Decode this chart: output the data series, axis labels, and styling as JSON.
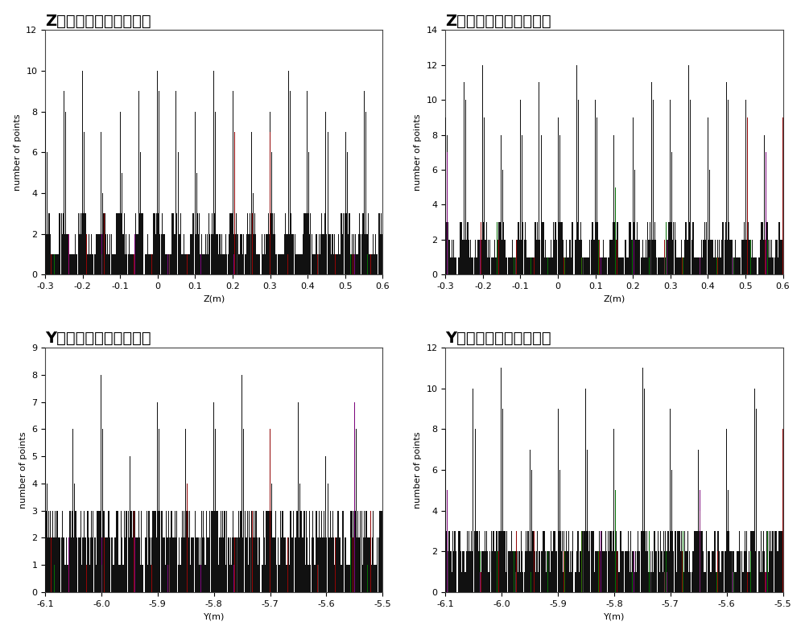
{
  "subplots": [
    {
      "title": "Z方向线密度变化周期１",
      "xlabel": "Z(m)",
      "ylabel": "number of points",
      "xlim": [
        -0.3,
        0.6
      ],
      "ylim": [
        0,
        12
      ],
      "yticks": [
        0,
        2,
        4,
        6,
        8,
        10,
        12
      ],
      "xticks": [
        -0.3,
        -0.2,
        -0.1,
        0.0,
        0.1,
        0.2,
        0.3,
        0.4,
        0.5,
        0.6
      ]
    },
    {
      "title": "Z方向线密度变化周期２",
      "xlabel": "Z(m)",
      "ylabel": "number of points",
      "xlim": [
        -0.3,
        0.6
      ],
      "ylim": [
        0,
        14
      ],
      "yticks": [
        0,
        2,
        4,
        6,
        8,
        10,
        12,
        14
      ],
      "xticks": [
        -0.3,
        -0.2,
        -0.1,
        0.0,
        0.1,
        0.2,
        0.3,
        0.4,
        0.5,
        0.6
      ]
    },
    {
      "title": "Y方向线密度变化周期１",
      "xlabel": "Y(m)",
      "ylabel": "number of points",
      "xlim": [
        -6.1,
        -5.5
      ],
      "ylim": [
        0,
        9
      ],
      "yticks": [
        0,
        1,
        2,
        3,
        4,
        5,
        6,
        7,
        8,
        9
      ],
      "xticks": [
        -6.1,
        -6.0,
        -5.9,
        -5.8,
        -5.7,
        -5.6,
        -5.5
      ]
    },
    {
      "title": "Y方向线密度变化周期２",
      "xlabel": "Y(m)",
      "ylabel": "number of points",
      "xlim": [
        -6.1,
        -5.5
      ],
      "ylim": [
        0,
        12
      ],
      "yticks": [
        0,
        2,
        4,
        6,
        8,
        10,
        12
      ],
      "xticks": [
        -6.1,
        -6.0,
        -5.9,
        -5.8,
        -5.7,
        -5.6,
        -5.5
      ]
    }
  ],
  "background_color": "#ffffff",
  "title_fontsize": 14,
  "label_fontsize": 8,
  "tick_fontsize": 8
}
